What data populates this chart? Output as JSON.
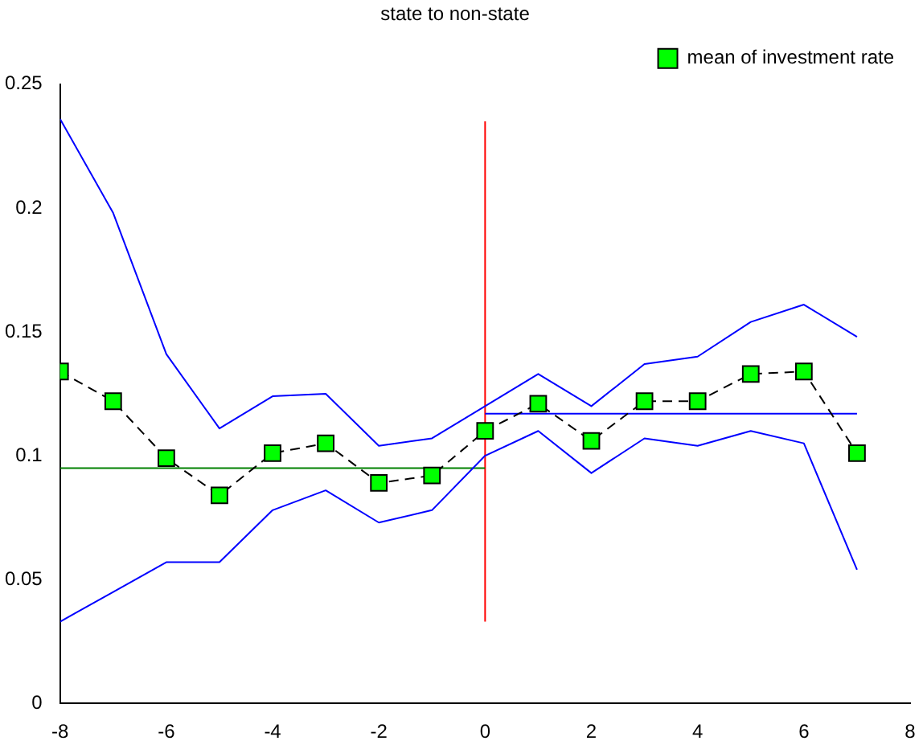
{
  "chart_data": {
    "type": "line",
    "title": "state to non-state",
    "xlim": [
      -8,
      8
    ],
    "xticks": [
      -8,
      -6,
      -4,
      -2,
      0,
      2,
      4,
      6,
      8
    ],
    "ylim": [
      0,
      0.25
    ],
    "yticks": [
      0,
      0.05,
      0.1,
      0.15,
      0.2,
      0.25
    ],
    "grid": false,
    "legend": "top right",
    "series": [
      {
        "name": "mean of investment rate",
        "color": "#000000",
        "marker": "square",
        "line_style": "dashed",
        "x": [
          -8,
          -7,
          -6,
          -5,
          -4,
          -3,
          -2,
          -1,
          0,
          1,
          2,
          3,
          4,
          5,
          6,
          7
        ],
        "values": [
          0.134,
          0.122,
          0.099,
          0.084,
          0.101,
          0.105,
          0.089,
          0.092,
          0.11,
          0.121,
          0.106,
          0.122,
          0.122,
          0.133,
          0.134,
          0.101
        ]
      },
      {
        "color": "#0000ff",
        "marker": "none",
        "line_style": "solid",
        "x": [
          -8,
          -7,
          -6,
          -5,
          -4,
          -3,
          -2,
          -1,
          0,
          1,
          2,
          3,
          4,
          5,
          6,
          7
        ],
        "values": [
          0.236,
          0.198,
          0.141,
          0.111,
          0.124,
          0.125,
          0.104,
          0.107,
          0.12,
          0.133,
          0.12,
          0.137,
          0.14,
          0.154,
          0.161,
          0.148
        ]
      },
      {
        "color": "#0000ff",
        "marker": "none",
        "line_style": "solid",
        "x": [
          -8,
          -7,
          -6,
          -5,
          -4,
          -3,
          -2,
          -1,
          0,
          1,
          2,
          3,
          4,
          5,
          6,
          7
        ],
        "values": [
          0.033,
          0.045,
          0.057,
          0.057,
          0.078,
          0.086,
          0.073,
          0.078,
          0.1,
          0.11,
          0.093,
          0.107,
          0.104,
          0.11,
          0.105,
          0.054
        ]
      },
      {
        "color": "#008000",
        "marker": "none",
        "line_style": "solid",
        "x": [
          -8,
          0
        ],
        "values": [
          0.095,
          0.095
        ]
      },
      {
        "color": "#0000ff",
        "marker": "none",
        "line_style": "solid",
        "x": [
          0,
          7
        ],
        "values": [
          0.117,
          0.117
        ]
      },
      {
        "color": "#ff0000",
        "marker": "none",
        "line_style": "solid",
        "x": [
          0,
          0
        ],
        "values": [
          0.033,
          0.235
        ]
      }
    ]
  }
}
